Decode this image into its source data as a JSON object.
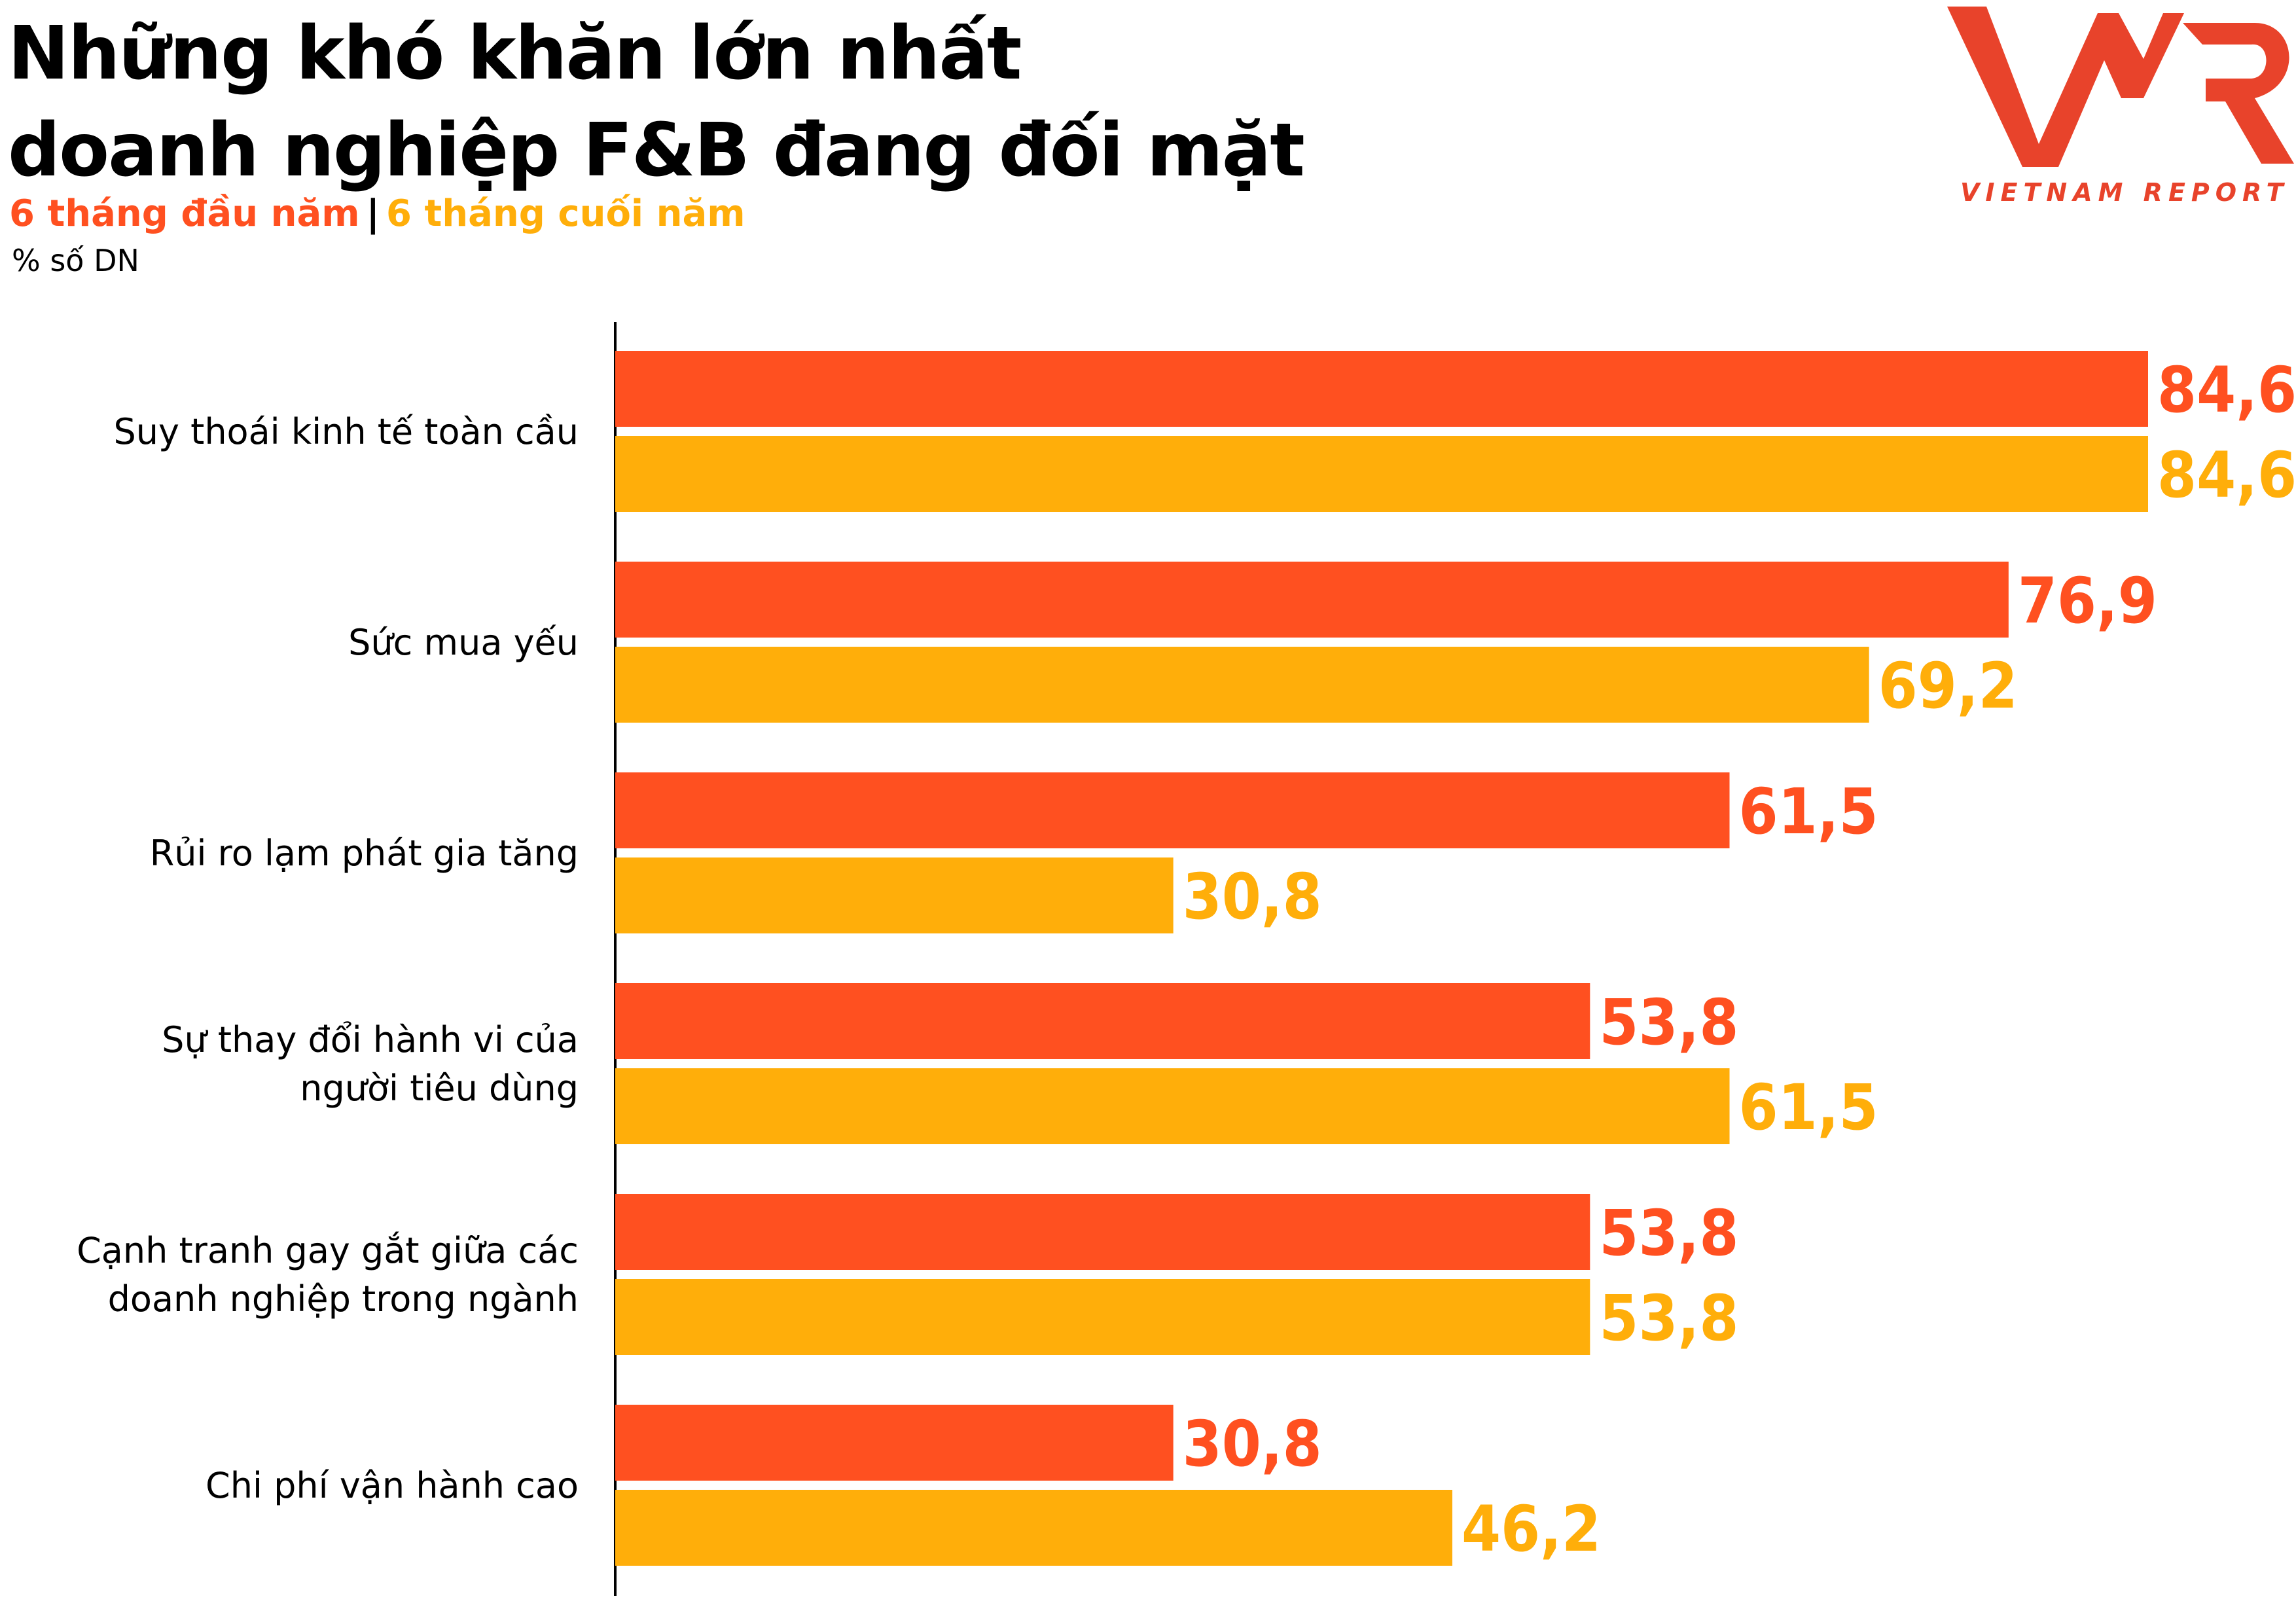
{
  "title_lines": [
    "Những khó khăn lớn nhất",
    "doanh nghiệp F&B đang đối mặt"
  ],
  "legend": {
    "first": "6 tháng đầu năm",
    "separator": "|",
    "second": "6 tháng cuối năm"
  },
  "unit": "% số DN",
  "logo": {
    "mark": "VNR",
    "caption": "VIETNAM REPORT"
  },
  "colors": {
    "first": "#FF5020",
    "second": "#FFAE0A",
    "logo": "#E8432B"
  },
  "chart_data": {
    "type": "bar",
    "orientation": "horizontal",
    "categories": [
      [
        "Suy thoái kinh tế toàn cầu"
      ],
      [
        "Sức mua yếu"
      ],
      [
        "Rủi ro lạm phát gia tăng"
      ],
      [
        "Sự thay đổi hành vi của",
        "người tiêu dùng"
      ],
      [
        "Cạnh tranh gay gắt giữa các",
        "doanh nghiệp trong ngành"
      ],
      [
        "Chi phí vận hành cao"
      ]
    ],
    "series": [
      {
        "name": "6 tháng đầu năm",
        "values": [
          84.6,
          76.9,
          61.5,
          53.8,
          53.8,
          30.8
        ],
        "labels": [
          "84,6",
          "76,9",
          "61,5",
          "53,8",
          "53,8",
          "30,8"
        ]
      },
      {
        "name": "6 tháng cuối năm",
        "values": [
          84.6,
          69.2,
          30.8,
          61.5,
          53.8,
          46.2
        ],
        "labels": [
          "84,6",
          "69,2",
          "30,8",
          "61,5",
          "53,8",
          "46,2"
        ]
      }
    ],
    "xlim": [
      0,
      84.6
    ],
    "grid": false,
    "legend_position": "top-left"
  }
}
